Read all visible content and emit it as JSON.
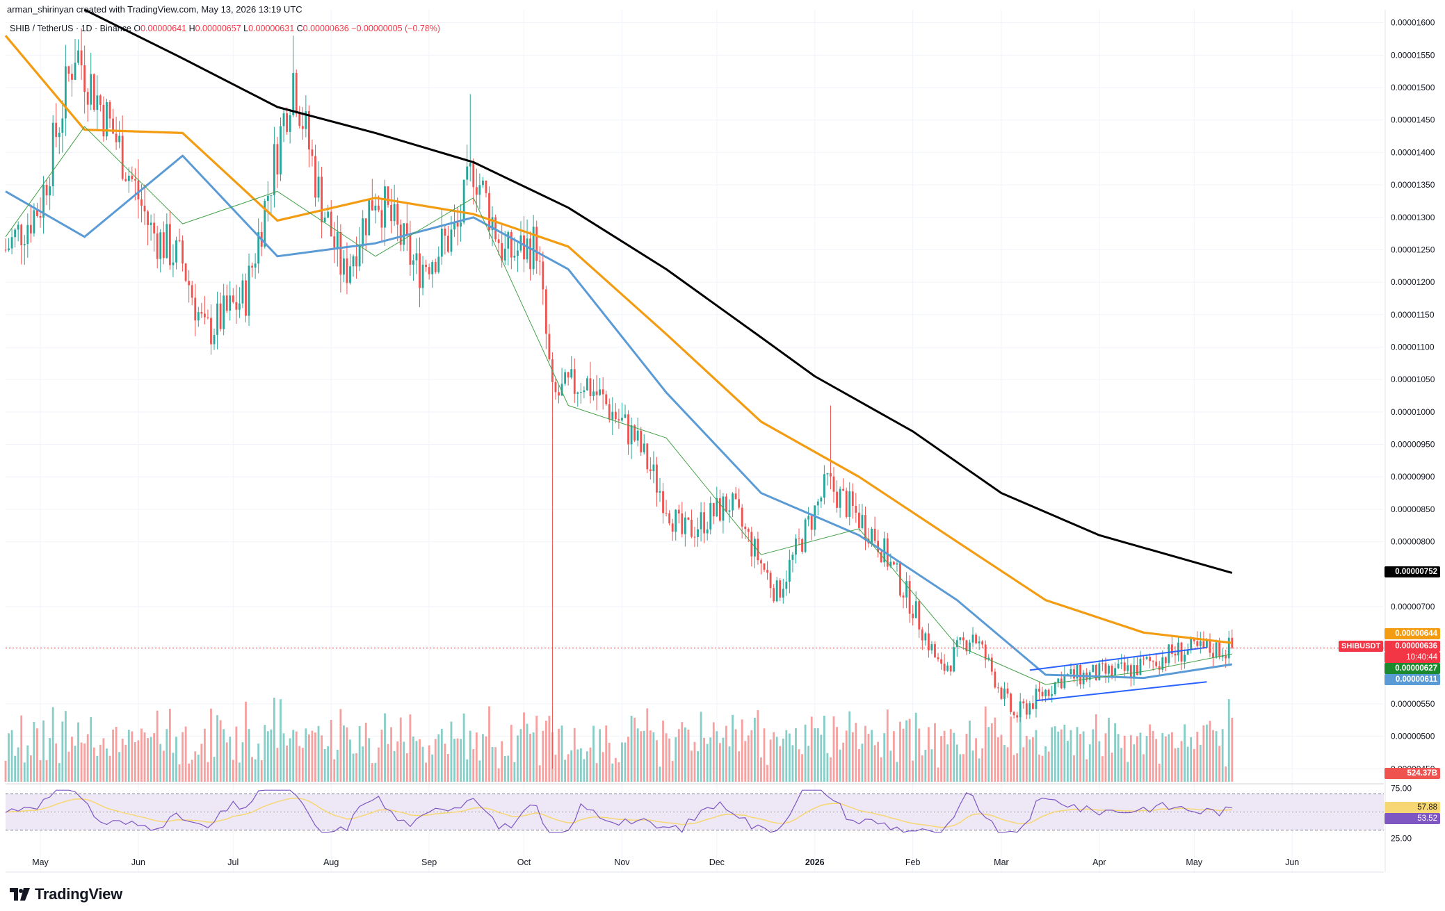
{
  "header": {
    "credit": "arman_shirinyan created with TradingView.com, May 13, 2026 13:19 UTC"
  },
  "legend": {
    "symbol": "SHIB / TetherUS · 1D · Binance",
    "open_label": "O",
    "open": "0.00000641",
    "high_label": "H",
    "high": "0.00000657",
    "low_label": "L",
    "low": "0.00000631",
    "close_label": "C",
    "close": "0.00000636",
    "change": "−0.00000005 (−0.78%)"
  },
  "price_axis": {
    "ticks": [
      "0.00001600",
      "0.00001550",
      "0.00001500",
      "0.00001450",
      "0.00001400",
      "0.00001350",
      "0.00001300",
      "0.00001250",
      "0.00001200",
      "0.00001150",
      "0.00001100",
      "0.00001050",
      "0.00001000",
      "0.00000950",
      "0.00000900",
      "0.00000850",
      "0.00000800",
      "0.00000700",
      "0.00000550",
      "0.00000500",
      "0.00000450"
    ]
  },
  "price_tags": {
    "ma200": "0.00000752",
    "ma100": "0.00000644",
    "last_price": "0.00000636",
    "countdown": "10:40:44",
    "ma20": "0.00000627",
    "ma50": "0.00000611",
    "volume": "524.37B",
    "symbol": "SHIBUSDT"
  },
  "rsi": {
    "upper_band": "75.00",
    "lower_band": "25.00",
    "rsi_value": "57.88",
    "ma_value": "53.52"
  },
  "time_axis": {
    "labels": [
      "May",
      "Jun",
      "Jul",
      "Aug",
      "Sep",
      "Oct",
      "Nov",
      "Dec",
      "2026",
      "Feb",
      "Mar",
      "Apr",
      "May",
      "Jun"
    ]
  },
  "brand": {
    "name": "TradingView"
  },
  "colors": {
    "up": "#26a69a",
    "down": "#ef5350",
    "ma20": "#43a047",
    "ma50": "#5b9bd5",
    "ma100": "#f39c12",
    "ma200": "#000000",
    "rsi_line": "#7e57c2",
    "rsi_ma": "#f7d774",
    "rsi_band": "#ede7f6",
    "channel": "#2962ff"
  },
  "chart_data": {
    "type": "candlestick",
    "symbol": "SHIBUSDT",
    "interval": "1D",
    "ylim": [
      4.3e-06,
      1.62e-05
    ],
    "x_range": [
      "2025-04-20",
      "2026-06-30"
    ],
    "series": [
      {
        "name": "MA200",
        "values": [
          {
            "date": "2025-05-15",
            "value": 1.62e-05
          },
          {
            "date": "2025-06-15",
            "value": 1.545e-05
          },
          {
            "date": "2025-07-15",
            "value": 1.47e-05
          },
          {
            "date": "2025-08-15",
            "value": 1.43e-05
          },
          {
            "date": "2025-09-15",
            "value": 1.385e-05
          },
          {
            "date": "2025-10-15",
            "value": 1.315e-05
          },
          {
            "date": "2025-11-15",
            "value": 1.22e-05
          },
          {
            "date": "2025-12-15",
            "value": 1.115e-05
          },
          {
            "date": "2026-01-01",
            "value": 1.055e-05
          },
          {
            "date": "2026-02-01",
            "value": 9.7e-06
          },
          {
            "date": "2026-03-01",
            "value": 8.75e-06
          },
          {
            "date": "2026-04-01",
            "value": 8.1e-06
          },
          {
            "date": "2026-05-13",
            "value": 7.52e-06
          }
        ]
      },
      {
        "name": "MA100",
        "values": [
          {
            "date": "2025-04-20",
            "value": 1.58e-05
          },
          {
            "date": "2025-05-15",
            "value": 1.435e-05
          },
          {
            "date": "2025-06-15",
            "value": 1.43e-05
          },
          {
            "date": "2025-07-15",
            "value": 1.295e-05
          },
          {
            "date": "2025-08-15",
            "value": 1.33e-05
          },
          {
            "date": "2025-09-15",
            "value": 1.305e-05
          },
          {
            "date": "2025-10-15",
            "value": 1.255e-05
          },
          {
            "date": "2025-11-15",
            "value": 1.12e-05
          },
          {
            "date": "2025-12-15",
            "value": 9.85e-06
          },
          {
            "date": "2026-01-15",
            "value": 9e-06
          },
          {
            "date": "2026-02-15",
            "value": 8e-06
          },
          {
            "date": "2026-03-15",
            "value": 7.1e-06
          },
          {
            "date": "2026-04-15",
            "value": 6.6e-06
          },
          {
            "date": "2026-05-13",
            "value": 6.44e-06
          }
        ]
      },
      {
        "name": "MA50",
        "values": [
          {
            "date": "2025-04-20",
            "value": 1.34e-05
          },
          {
            "date": "2025-05-15",
            "value": 1.27e-05
          },
          {
            "date": "2025-06-15",
            "value": 1.395e-05
          },
          {
            "date": "2025-07-15",
            "value": 1.24e-05
          },
          {
            "date": "2025-08-15",
            "value": 1.26e-05
          },
          {
            "date": "2025-09-15",
            "value": 1.3e-05
          },
          {
            "date": "2025-10-15",
            "value": 1.22e-05
          },
          {
            "date": "2025-11-15",
            "value": 1.03e-05
          },
          {
            "date": "2025-12-15",
            "value": 8.75e-06
          },
          {
            "date": "2026-01-15",
            "value": 8.1e-06
          },
          {
            "date": "2026-02-15",
            "value": 7.1e-06
          },
          {
            "date": "2026-03-15",
            "value": 5.95e-06
          },
          {
            "date": "2026-04-15",
            "value": 5.9e-06
          },
          {
            "date": "2026-05-13",
            "value": 6.11e-06
          }
        ]
      },
      {
        "name": "MA20",
        "values": [
          {
            "date": "2025-04-20",
            "value": 1.27e-05
          },
          {
            "date": "2025-05-15",
            "value": 1.44e-05
          },
          {
            "date": "2025-06-15",
            "value": 1.29e-05
          },
          {
            "date": "2025-07-15",
            "value": 1.34e-05
          },
          {
            "date": "2025-08-15",
            "value": 1.24e-05
          },
          {
            "date": "2025-09-15",
            "value": 1.33e-05
          },
          {
            "date": "2025-10-15",
            "value": 1.01e-05
          },
          {
            "date": "2025-11-15",
            "value": 9.6e-06
          },
          {
            "date": "2025-12-15",
            "value": 7.8e-06
          },
          {
            "date": "2026-01-15",
            "value": 8.2e-06
          },
          {
            "date": "2026-02-15",
            "value": 6.4e-06
          },
          {
            "date": "2026-03-15",
            "value": 5.8e-06
          },
          {
            "date": "2026-04-15",
            "value": 6e-06
          },
          {
            "date": "2026-05-13",
            "value": 6.27e-06
          }
        ]
      }
    ],
    "close_path": [
      {
        "date": "2025-04-20",
        "value": 1.25e-05
      },
      {
        "date": "2025-05-01",
        "value": 1.32e-05
      },
      {
        "date": "2025-05-12",
        "value": 1.56e-05
      },
      {
        "date": "2025-05-25",
        "value": 1.42e-05
      },
      {
        "date": "2025-06-05",
        "value": 1.28e-05
      },
      {
        "date": "2025-06-15",
        "value": 1.23e-05
      },
      {
        "date": "2025-06-22",
        "value": 1.12e-05
      },
      {
        "date": "2025-07-05",
        "value": 1.18e-05
      },
      {
        "date": "2025-07-20",
        "value": 1.52e-05
      },
      {
        "date": "2025-07-28",
        "value": 1.34e-05
      },
      {
        "date": "2025-08-05",
        "value": 1.21e-05
      },
      {
        "date": "2025-08-15",
        "value": 1.34e-05
      },
      {
        "date": "2025-08-28",
        "value": 1.22e-05
      },
      {
        "date": "2025-09-10",
        "value": 1.28e-05
      },
      {
        "date": "2025-09-15",
        "value": 1.38e-05
      },
      {
        "date": "2025-09-25",
        "value": 1.24e-05
      },
      {
        "date": "2025-10-05",
        "value": 1.26e-05
      },
      {
        "date": "2025-10-10",
        "value": 1.02e-05
      },
      {
        "date": "2025-10-20",
        "value": 1.05e-05
      },
      {
        "date": "2025-11-05",
        "value": 9.6e-06
      },
      {
        "date": "2025-11-20",
        "value": 8.1e-06
      },
      {
        "date": "2025-12-05",
        "value": 8.6e-06
      },
      {
        "date": "2025-12-20",
        "value": 7.2e-06
      },
      {
        "date": "2026-01-05",
        "value": 8.9e-06
      },
      {
        "date": "2026-01-20",
        "value": 8.1e-06
      },
      {
        "date": "2026-02-01",
        "value": 7e-06
      },
      {
        "date": "2026-02-10",
        "value": 6e-06
      },
      {
        "date": "2026-02-20",
        "value": 6.6e-06
      },
      {
        "date": "2026-03-05",
        "value": 5.3e-06
      },
      {
        "date": "2026-03-20",
        "value": 5.9e-06
      },
      {
        "date": "2026-04-10",
        "value": 6e-06
      },
      {
        "date": "2026-04-25",
        "value": 6.3e-06
      },
      {
        "date": "2026-05-13",
        "value": 6.36e-06
      }
    ],
    "spikes": [
      {
        "date": "2025-10-10",
        "low": 4.5e-06
      },
      {
        "date": "2026-01-06",
        "high": 1.01e-05
      },
      {
        "date": "2025-09-14",
        "high": 1.49e-05
      },
      {
        "date": "2025-07-20",
        "high": 1.58e-05
      }
    ],
    "channel": {
      "upper": [
        {
          "date": "2026-03-10",
          "value": 6.02e-06
        },
        {
          "date": "2026-05-05",
          "value": 6.37e-06
        }
      ],
      "lower": [
        {
          "date": "2026-03-12",
          "value": 5.55e-06
        },
        {
          "date": "2026-05-05",
          "value": 5.84e-06
        }
      ]
    },
    "rsi_ylim": [
      15,
      85
    ],
    "rsi_bands": [
      25,
      75
    ],
    "volume_unit": "B"
  }
}
